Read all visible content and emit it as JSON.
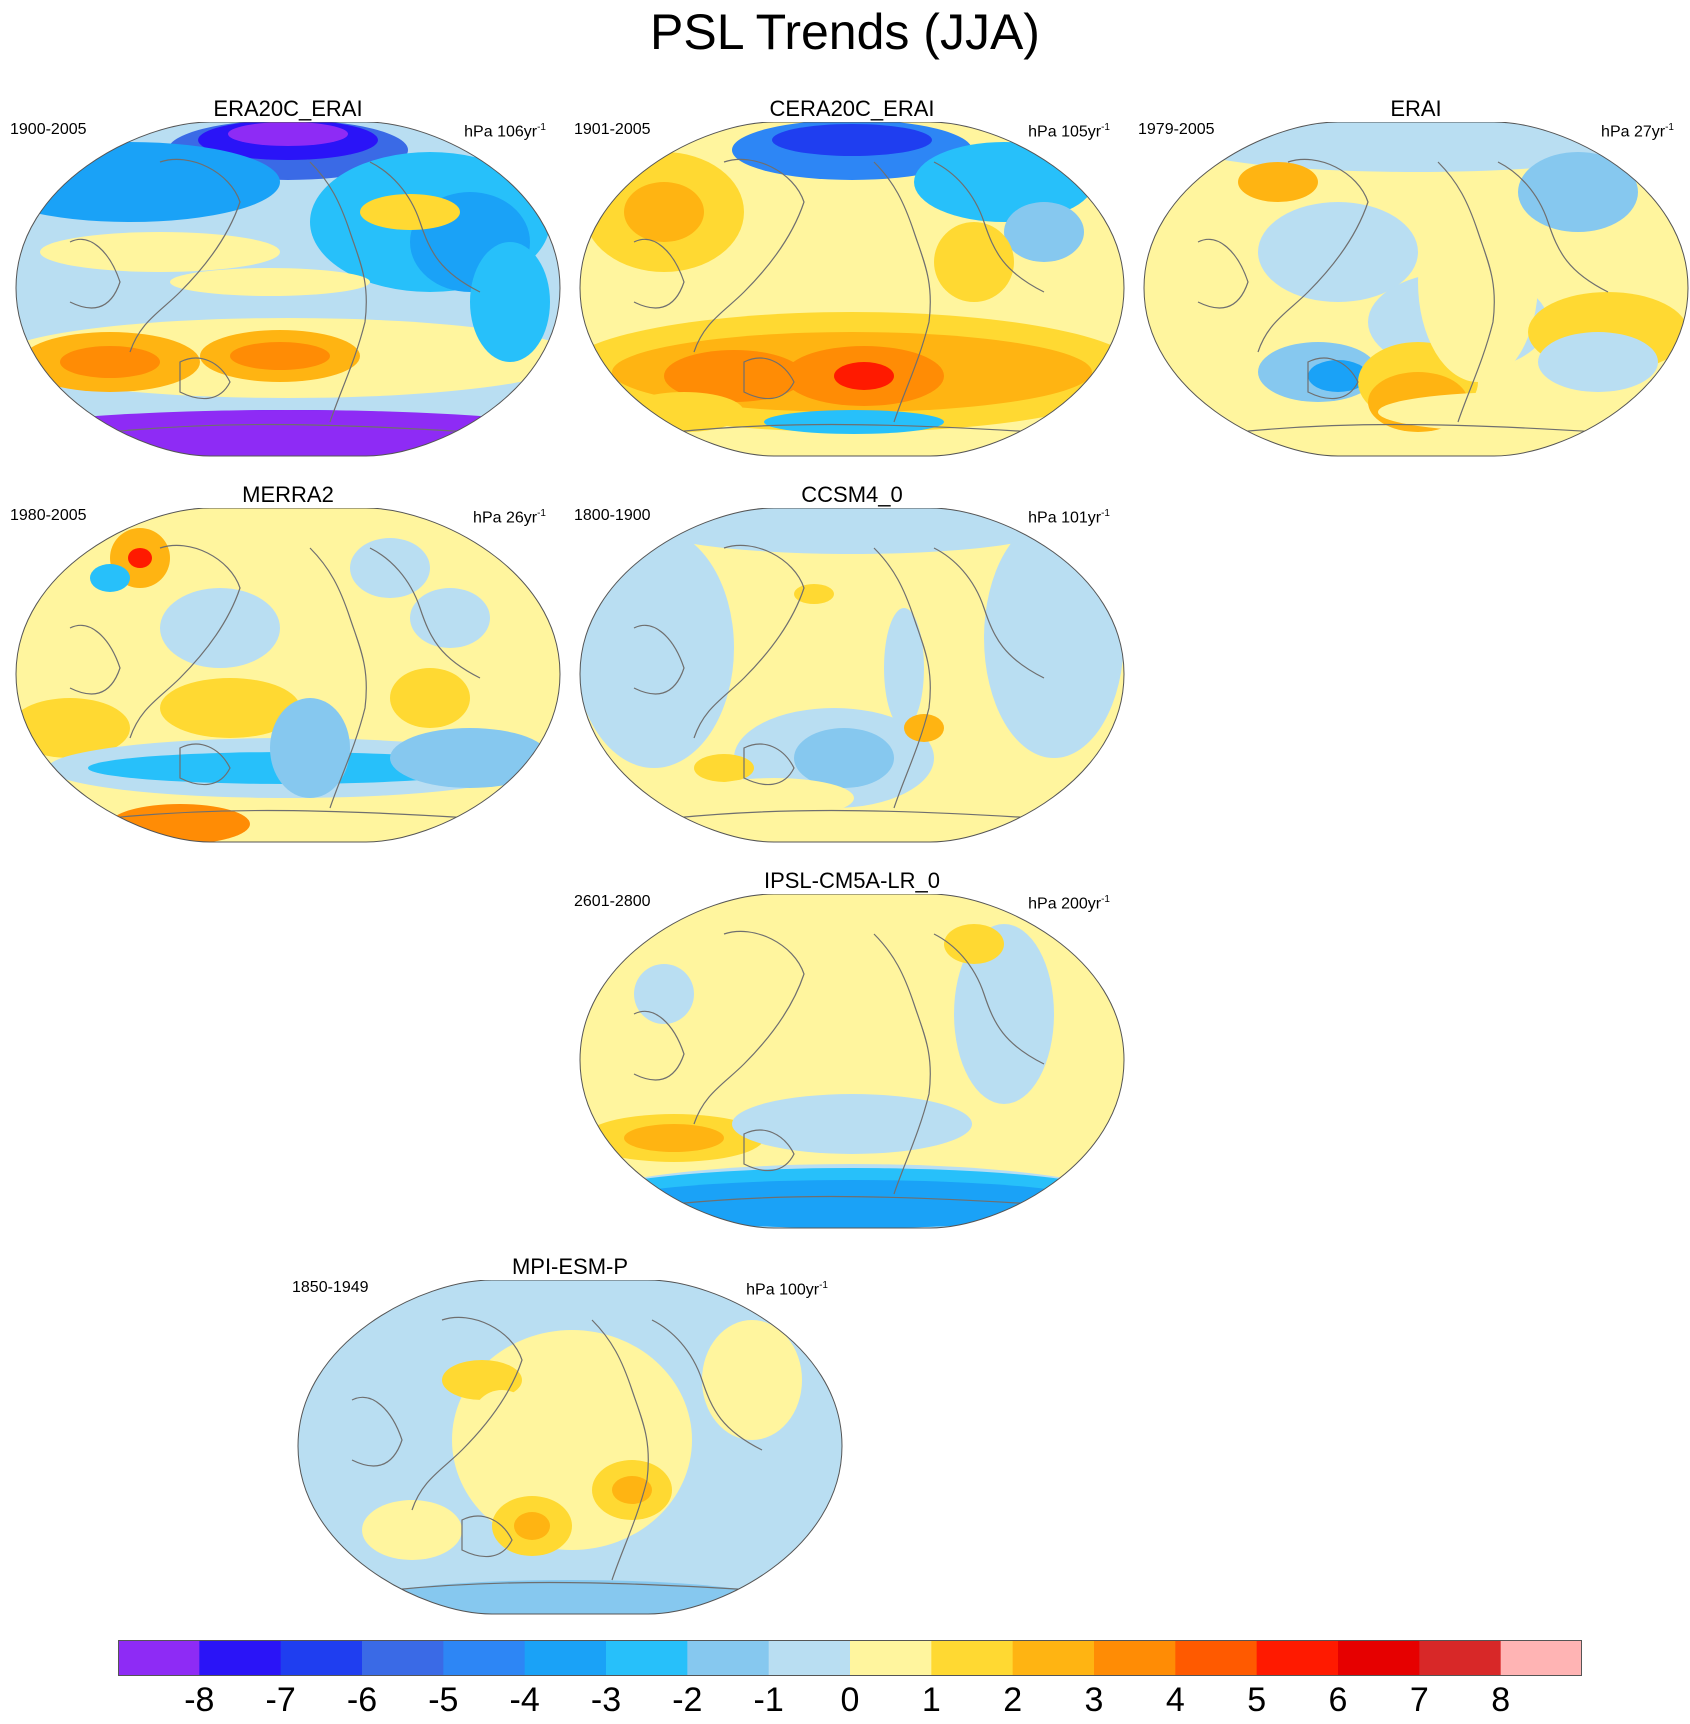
{
  "title": "PSL Trends (JJA)",
  "colorbar": {
    "labels": [
      "-8",
      "-7",
      "-6",
      "-5",
      "-4",
      "-3",
      "-2",
      "-1",
      "0",
      "1",
      "2",
      "3",
      "4",
      "5",
      "6",
      "7",
      "8"
    ],
    "colors": [
      "#8e2bf5",
      "#2a14f7",
      "#1f3ef0",
      "#3a6ae6",
      "#2d86f5",
      "#1aa2f7",
      "#27c0fa",
      "#86c8ef",
      "#b9def2",
      "#fff59e",
      "#ffd932",
      "#ffb412",
      "#ff8c05",
      "#ff5a00",
      "#ff1a00",
      "#e60000",
      "#d82828",
      "#ffb4b4"
    ]
  },
  "panels": [
    {
      "title": "ERA20C_ERAI",
      "period": "1900-2005",
      "units": "hPa 106yr",
      "units_sup": "-1",
      "scheme": "era20c"
    },
    {
      "title": "CERA20C_ERAI",
      "period": "1901-2005",
      "units": "hPa 105yr",
      "units_sup": "-1",
      "scheme": "cera20c"
    },
    {
      "title": "ERAI",
      "period": "1979-2005",
      "units": "hPa 27yr",
      "units_sup": "-1",
      "scheme": "erai"
    },
    {
      "title": "MERRA2",
      "period": "1980-2005",
      "units": "hPa 26yr",
      "units_sup": "-1",
      "scheme": "merra2"
    },
    {
      "title": "CCSM4_0",
      "period": "1800-1900",
      "units": "hPa 101yr",
      "units_sup": "-1",
      "scheme": "ccsm4"
    },
    {
      "title": "IPSL-CM5A-LR_0",
      "period": "2601-2800",
      "units": "hPa 200yr",
      "units_sup": "-1",
      "scheme": "ipsl"
    },
    {
      "title": "MPI-ESM-P",
      "period": "1850-1949",
      "units": "hPa 100yr",
      "units_sup": "-1",
      "scheme": "mpi"
    }
  ]
}
